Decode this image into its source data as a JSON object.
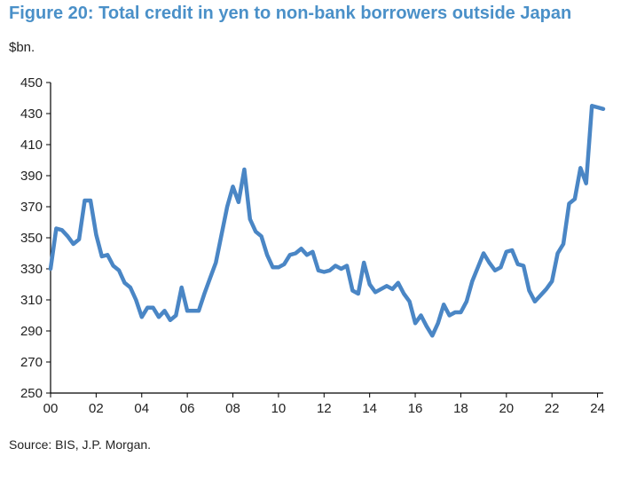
{
  "title": "Figure 20: Total credit in yen to non-bank borrowers outside Japan",
  "unit_label": "$bn.",
  "source": "Source: BIS, J.P. Morgan.",
  "colors": {
    "title": "#4a90c8",
    "line": "#4a86c5",
    "axis": "#000000"
  },
  "chart_data": {
    "type": "line",
    "title": "",
    "xlabel": "",
    "ylabel": "$bn.",
    "ylim": [
      250,
      450
    ],
    "xlim": [
      2000,
      2024.25
    ],
    "y_ticks": [
      250,
      270,
      290,
      310,
      330,
      350,
      370,
      390,
      410,
      430,
      450
    ],
    "x_ticks": [
      {
        "value": 2000,
        "label": "00"
      },
      {
        "value": 2002,
        "label": "02"
      },
      {
        "value": 2004,
        "label": "04"
      },
      {
        "value": 2006,
        "label": "06"
      },
      {
        "value": 2008,
        "label": "08"
      },
      {
        "value": 2010,
        "label": "10"
      },
      {
        "value": 2012,
        "label": "12"
      },
      {
        "value": 2014,
        "label": "14"
      },
      {
        "value": 2016,
        "label": "16"
      },
      {
        "value": 2018,
        "label": "18"
      },
      {
        "value": 2020,
        "label": "20"
      },
      {
        "value": 2022,
        "label": "22"
      },
      {
        "value": 2024,
        "label": "24"
      }
    ],
    "grid": false,
    "series": [
      {
        "x": [
          2000.0,
          2000.25,
          2000.5,
          2000.75,
          2001.0,
          2001.25,
          2001.5,
          2001.75,
          2002.0,
          2002.25,
          2002.5,
          2002.75,
          2003.0,
          2003.25,
          2003.5,
          2003.75,
          2004.0,
          2004.25,
          2004.5,
          2004.75,
          2005.0,
          2005.25,
          2005.5,
          2005.75,
          2006.0,
          2006.25,
          2006.5,
          2006.75,
          2007.0,
          2007.25,
          2007.5,
          2007.75,
          2008.0,
          2008.25,
          2008.5,
          2008.75,
          2009.0,
          2009.25,
          2009.5,
          2009.75,
          2010.0,
          2010.25,
          2010.5,
          2010.75,
          2011.0,
          2011.25,
          2011.5,
          2011.75,
          2012.0,
          2012.25,
          2012.5,
          2012.75,
          2013.0,
          2013.25,
          2013.5,
          2013.75,
          2014.0,
          2014.25,
          2014.5,
          2014.75,
          2015.0,
          2015.25,
          2015.5,
          2015.75,
          2016.0,
          2016.25,
          2016.5,
          2016.75,
          2017.0,
          2017.25,
          2017.5,
          2017.75,
          2018.0,
          2018.25,
          2018.5,
          2018.75,
          2019.0,
          2019.25,
          2019.5,
          2019.75,
          2020.0,
          2020.25,
          2020.5,
          2020.75,
          2021.0,
          2021.25,
          2021.5,
          2021.75,
          2022.0,
          2022.25,
          2022.5,
          2022.75,
          2023.0,
          2023.25,
          2023.5,
          2023.75,
          2024.0,
          2024.25
        ],
        "values": [
          330,
          356,
          355,
          351,
          346,
          349,
          374,
          374,
          352,
          338,
          339,
          332,
          329,
          321,
          318,
          310,
          299,
          305,
          305,
          299,
          303,
          297,
          300,
          318,
          303,
          303,
          303,
          314,
          324,
          334,
          352,
          370,
          383,
          373,
          394,
          362,
          354,
          351,
          339,
          331,
          331,
          333,
          339,
          340,
          343,
          339,
          341,
          329,
          328,
          329,
          332,
          330,
          332,
          316,
          314,
          334,
          320,
          315,
          317,
          319,
          317,
          321,
          314,
          309,
          295,
          300,
          293,
          287,
          295,
          307,
          300,
          302,
          302,
          309,
          322,
          331,
          340,
          334,
          329,
          331,
          341,
          342,
          333,
          332,
          316,
          309,
          313,
          317,
          322,
          340,
          346,
          372,
          375,
          395,
          385,
          435,
          434,
          433
        ]
      }
    ]
  }
}
